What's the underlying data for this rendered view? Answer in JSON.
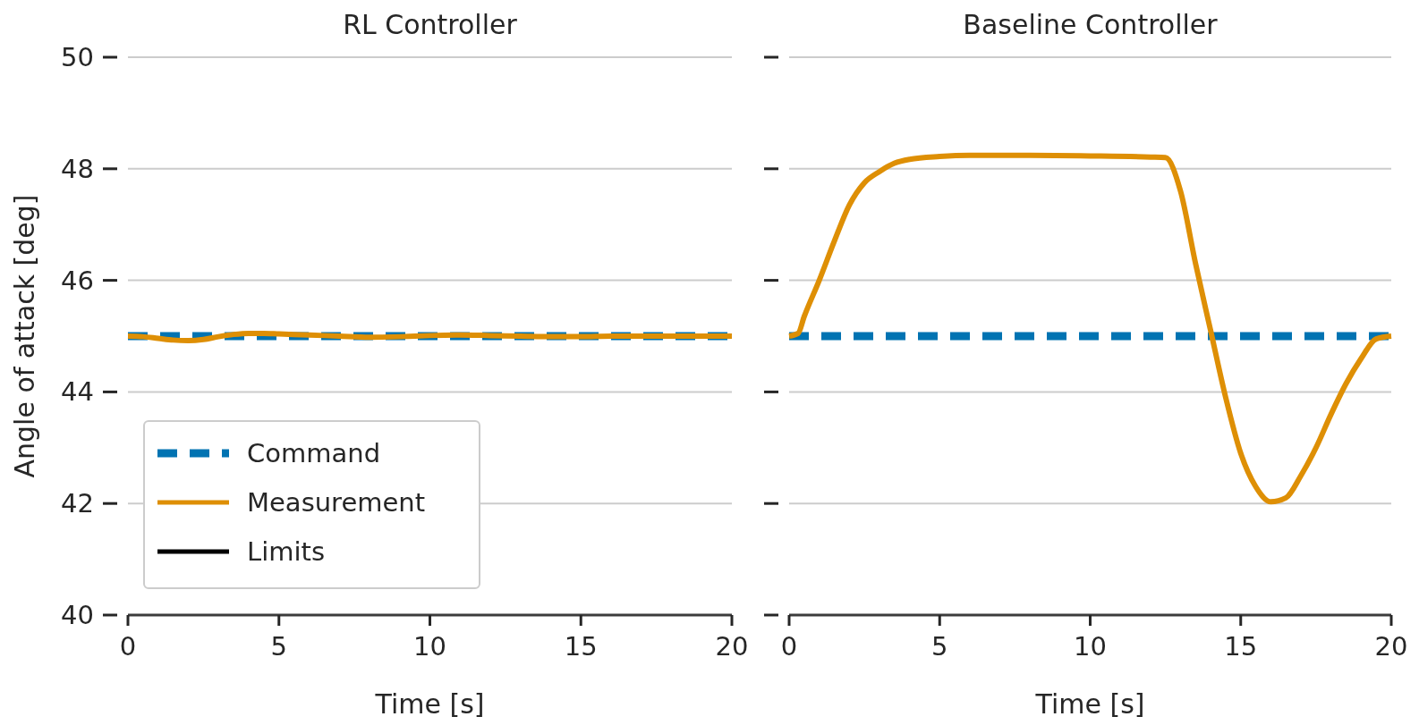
{
  "chart_data": [
    {
      "type": "line",
      "title": "RL Controller",
      "xlabel": "Time [s]",
      "ylabel": "Angle of attack [deg]",
      "xlim": [
        0,
        20
      ],
      "ylim": [
        40,
        50
      ],
      "xticks": [
        0,
        5,
        10,
        15,
        20
      ],
      "yticks": [
        40,
        42,
        44,
        46,
        48,
        50
      ],
      "grid": "y",
      "legend": "bottom left",
      "series": [
        {
          "name": "Command",
          "color": "#0173b2",
          "line_style": "dashed",
          "x": [
            0,
            20
          ],
          "values": [
            45,
            45
          ]
        },
        {
          "name": "Measurement",
          "color": "#de8f05",
          "line_style": "solid",
          "x": [
            0,
            0.5,
            1,
            1.5,
            2,
            2.5,
            3,
            3.5,
            4,
            4.5,
            5,
            6,
            7,
            8,
            9,
            10,
            11,
            12,
            13,
            14,
            15,
            16,
            17,
            18,
            19,
            20
          ],
          "values": [
            45.0,
            44.99,
            44.96,
            44.93,
            44.92,
            44.94,
            44.99,
            45.03,
            45.05,
            45.05,
            45.04,
            45.02,
            45.0,
            44.98,
            44.99,
            45.01,
            45.02,
            45.01,
            45.0,
            44.99,
            44.99,
            45.0,
            45.0,
            45.0,
            45.0,
            45.0
          ]
        },
        {
          "name": "Limits",
          "color": "#000000",
          "line_style": "solid"
        }
      ]
    },
    {
      "type": "line",
      "title": "Baseline Controller",
      "xlabel": "Time [s]",
      "xlim": [
        0,
        20
      ],
      "ylim": [
        40,
        50
      ],
      "xticks": [
        0,
        5,
        10,
        15,
        20
      ],
      "yticks": [
        40,
        42,
        44,
        46,
        48,
        50
      ],
      "grid": "y",
      "tick_labels": "x",
      "series": [
        {
          "color": "#0173b2",
          "line_style": "dashed",
          "x": [
            0,
            20
          ],
          "values": [
            45,
            45
          ]
        },
        {
          "color": "#de8f05",
          "line_style": "solid",
          "x": [
            0,
            0.3,
            0.5,
            1,
            1.5,
            2,
            2.5,
            3,
            3.5,
            4,
            5,
            6,
            8,
            10,
            12,
            12.5,
            13,
            13.5,
            14,
            14.5,
            15,
            15.5,
            16,
            16.5,
            17,
            17.5,
            18,
            18.5,
            19,
            19.5,
            20
          ],
          "values": [
            45.0,
            45.05,
            45.35,
            46.0,
            46.7,
            47.35,
            47.75,
            47.95,
            48.1,
            48.17,
            48.22,
            48.24,
            48.24,
            48.23,
            48.21,
            48.2,
            47.6,
            46.3,
            45.1,
            43.9,
            42.9,
            42.3,
            42.03,
            42.1,
            42.5,
            43.0,
            43.6,
            44.15,
            44.6,
            44.95,
            45.0
          ]
        }
      ]
    }
  ]
}
